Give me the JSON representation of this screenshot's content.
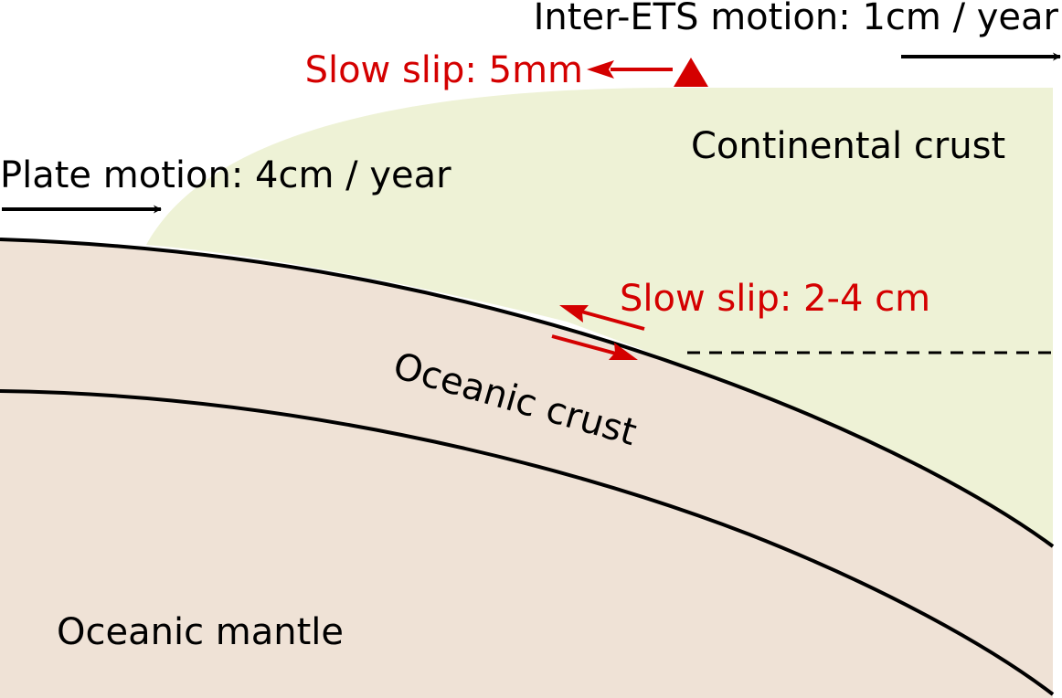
{
  "labels": {
    "inter_ets_motion": "Inter-ETS motion: 1cm / year",
    "slow_slip_surface": "Slow slip: 5mm",
    "continental_crust": "Continental crust",
    "plate_motion": "Plate motion: 4cm / year",
    "slow_slip_fault": "Slow slip: 2-4 cm",
    "oceanic_crust": "Oceanic crust",
    "oceanic_mantle": "Oceanic mantle"
  },
  "colors": {
    "continental_crust": "#eef2d6",
    "oceanic_plate": "#efe2d6",
    "slow_slip": "#d40000",
    "line": "#000000"
  }
}
